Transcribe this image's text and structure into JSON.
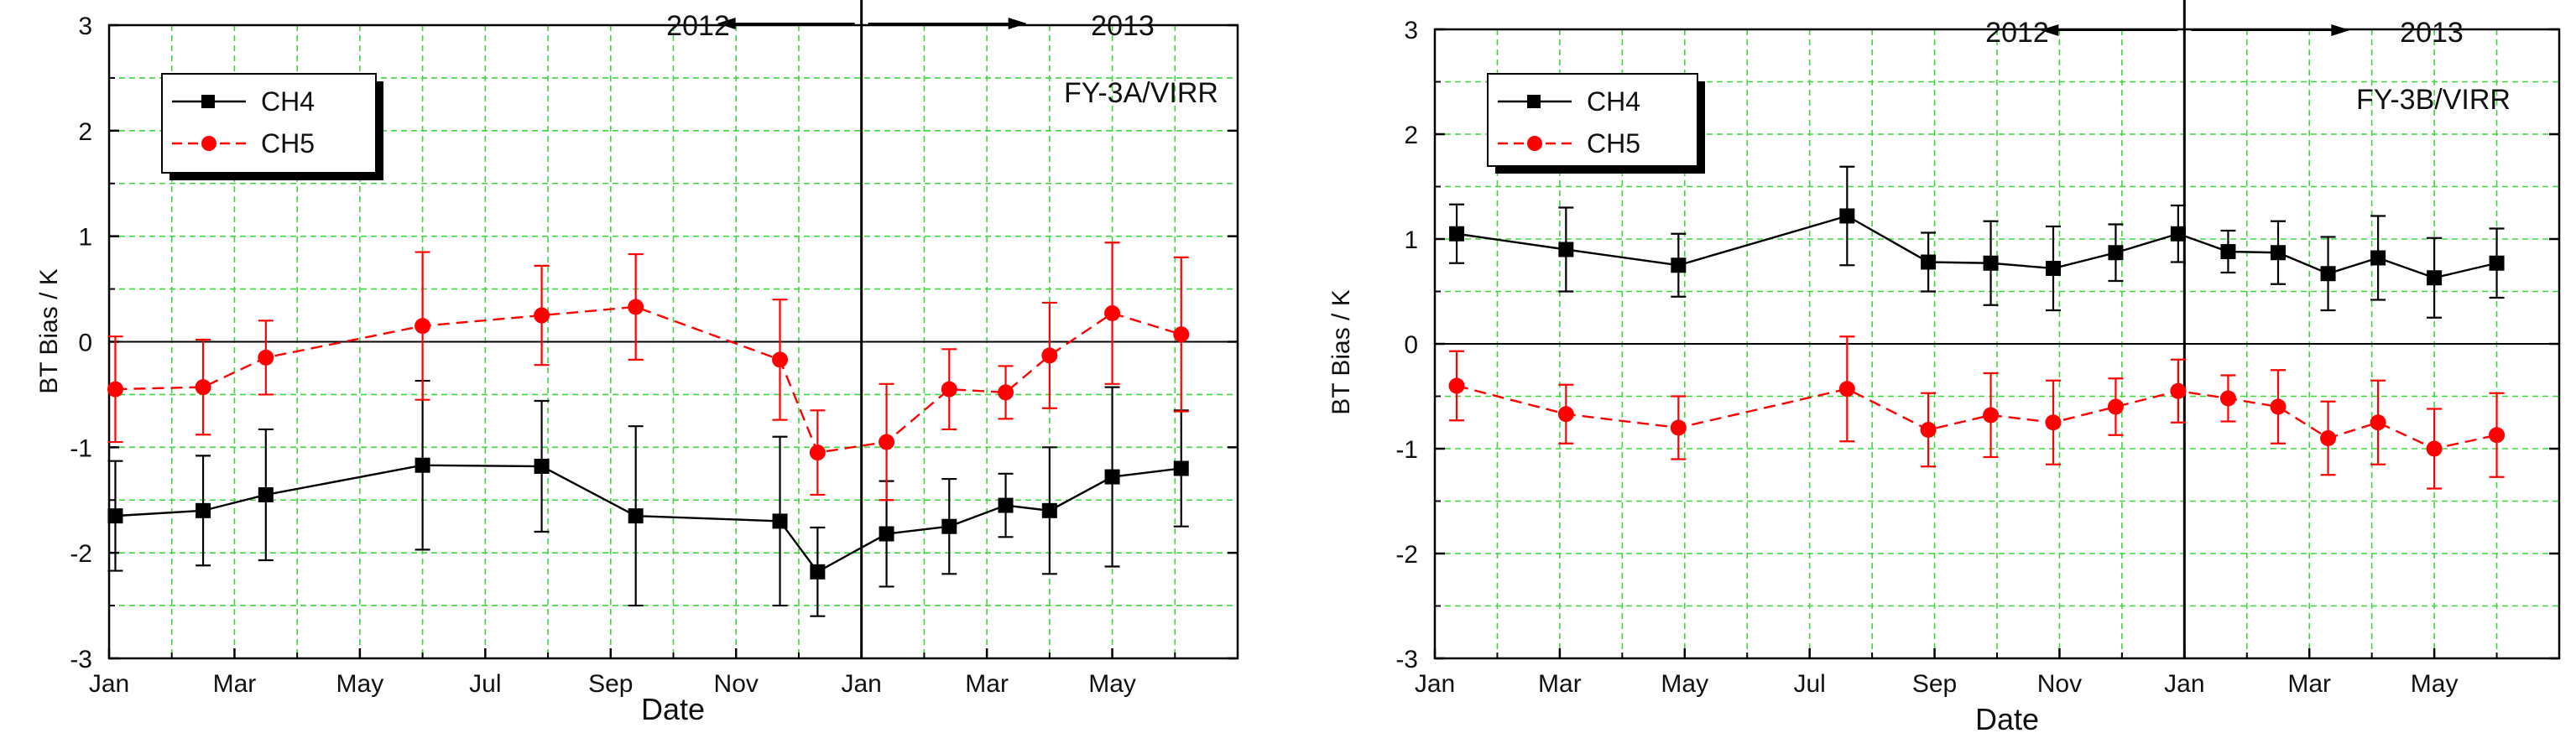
{
  "figure": {
    "background": "#ffffff",
    "grid_color": "#3dd63d",
    "zero_line_color": "#000000"
  },
  "chart_data": [
    {
      "type": "line",
      "title": "FY-3A/VIRR",
      "xlabel": "Date",
      "ylabel": "BT Bias / K",
      "ylim": [
        -3,
        3
      ],
      "yticks": [
        -3,
        -2,
        -1,
        0,
        1,
        2,
        3
      ],
      "xlim": [
        0,
        18
      ],
      "xticks": [
        0,
        2,
        4,
        6,
        8,
        10,
        12,
        14,
        16
      ],
      "xtick_labels": [
        "Jan",
        "Mar",
        "May",
        "Jul",
        "Sep",
        "Nov",
        "Jan",
        "Mar",
        "May"
      ],
      "divider_x": 12,
      "year_left": "2012",
      "year_right": "2013",
      "legend_position": "top-left",
      "series": [
        {
          "name": "CH4",
          "color": "#000000",
          "marker": "square",
          "line": "solid",
          "x": [
            0.1,
            1.5,
            2.5,
            5.0,
            6.9,
            8.4,
            10.7,
            11.3,
            12.4,
            13.4,
            14.3,
            15.0,
            16.0,
            17.1
          ],
          "y": [
            -1.65,
            -1.6,
            -1.45,
            -1.17,
            -1.18,
            -1.65,
            -1.7,
            -2.18,
            -1.82,
            -1.75,
            -1.55,
            -1.6,
            -1.28,
            -1.2
          ],
          "err": [
            0.52,
            0.52,
            0.62,
            0.8,
            0.62,
            0.85,
            0.8,
            0.42,
            0.5,
            0.45,
            0.3,
            0.6,
            0.85,
            0.55
          ]
        },
        {
          "name": "CH5",
          "color": "#ff0000",
          "marker": "circle",
          "line": "dashed",
          "x": [
            0.1,
            1.5,
            2.5,
            5.0,
            6.9,
            8.4,
            10.7,
            11.3,
            12.4,
            13.4,
            14.3,
            15.0,
            16.0,
            17.1
          ],
          "y": [
            -0.45,
            -0.43,
            -0.15,
            0.15,
            0.25,
            0.33,
            -0.17,
            -1.05,
            -0.95,
            -0.45,
            -0.48,
            -0.13,
            0.27,
            0.07
          ],
          "err": [
            0.5,
            0.45,
            0.35,
            0.7,
            0.47,
            0.5,
            0.57,
            0.4,
            0.55,
            0.38,
            0.25,
            0.5,
            0.67,
            0.73
          ]
        }
      ]
    },
    {
      "type": "line",
      "title": "FY-3B/VIRR",
      "xlabel": "Date",
      "ylabel": "BT Bias / K",
      "ylim": [
        -3,
        3
      ],
      "yticks": [
        -3,
        -2,
        -1,
        0,
        1,
        2,
        3
      ],
      "xlim": [
        0,
        18
      ],
      "xticks": [
        0,
        2,
        4,
        6,
        8,
        10,
        12,
        14,
        16
      ],
      "xtick_labels": [
        "Jan",
        "Mar",
        "May",
        "Jul",
        "Sep",
        "Nov",
        "Jan",
        "Mar",
        "May"
      ],
      "divider_x": 12,
      "year_left": "2012",
      "year_right": "2013",
      "legend_position": "top-left",
      "series": [
        {
          "name": "CH4",
          "color": "#000000",
          "marker": "square",
          "line": "solid",
          "x": [
            0.35,
            2.1,
            3.9,
            6.6,
            7.9,
            8.9,
            9.9,
            10.9,
            11.9,
            12.7,
            13.5,
            14.3,
            15.1,
            16.0,
            17.0
          ],
          "y": [
            1.05,
            0.9,
            0.75,
            1.22,
            0.78,
            0.77,
            0.72,
            0.87,
            1.05,
            0.88,
            0.87,
            0.67,
            0.82,
            0.63,
            0.77
          ],
          "err": [
            0.28,
            0.4,
            0.3,
            0.47,
            0.28,
            0.4,
            0.4,
            0.27,
            0.27,
            0.2,
            0.3,
            0.35,
            0.4,
            0.38,
            0.33
          ]
        },
        {
          "name": "CH5",
          "color": "#ff0000",
          "marker": "circle",
          "line": "dashed",
          "x": [
            0.35,
            2.1,
            3.9,
            6.6,
            7.9,
            8.9,
            9.9,
            10.9,
            11.9,
            12.7,
            13.5,
            14.3,
            15.1,
            16.0,
            17.0
          ],
          "y": [
            -0.4,
            -0.67,
            -0.8,
            -0.43,
            -0.82,
            -0.68,
            -0.75,
            -0.6,
            -0.45,
            -0.52,
            -0.6,
            -0.9,
            -0.75,
            -1.0,
            -0.87
          ],
          "err": [
            0.33,
            0.28,
            0.3,
            0.5,
            0.35,
            0.4,
            0.4,
            0.27,
            0.3,
            0.22,
            0.35,
            0.35,
            0.4,
            0.38,
            0.4
          ]
        }
      ]
    }
  ]
}
